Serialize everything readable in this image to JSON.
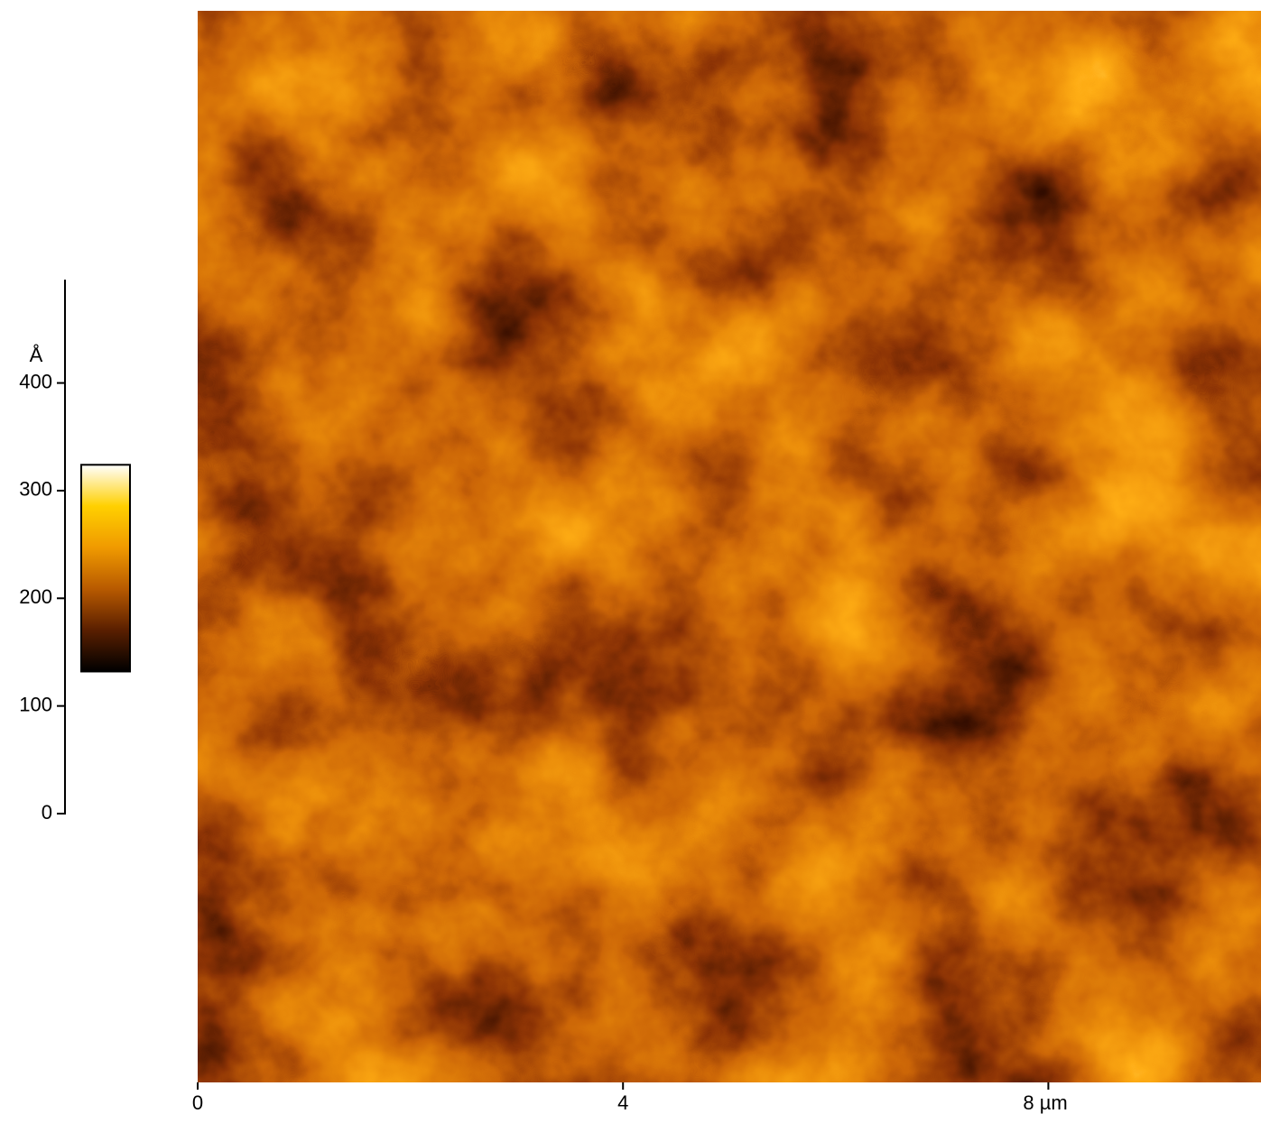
{
  "chart_data": {
    "type": "image",
    "xlim": [
      0,
      10
    ],
    "xticks": [
      0,
      4,
      {
        "value": 8,
        "label": "8 µm"
      }
    ],
    "colorbar": {
      "label": "Å",
      "ylim": [
        0,
        496
      ],
      "yticks": [
        0,
        100,
        200,
        300,
        400
      ],
      "clim": [
        132,
        324
      ],
      "colormap": [
        "#000000",
        "#5a1f00",
        "#b85a00",
        "#f09a00",
        "#ffd000",
        "#ffffff"
      ]
    }
  }
}
